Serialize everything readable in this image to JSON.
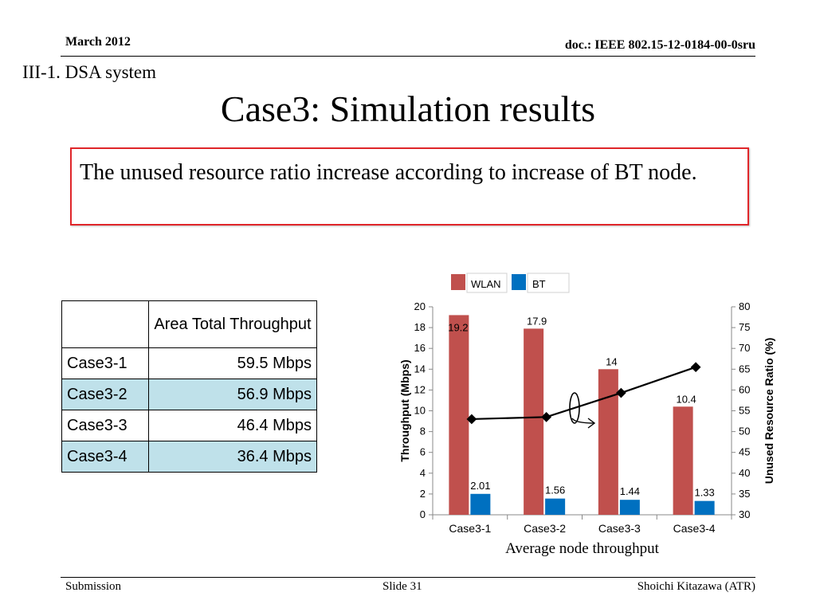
{
  "header": {
    "date": "March 2012",
    "doc": "doc.: IEEE 802.15-12-0184-00-0sru"
  },
  "section": "III-1. DSA system",
  "title": "Case3: Simulation results",
  "callout": "The unused resource ratio increase according to increase of BT node.",
  "table": {
    "header": [
      "",
      "Area Total Throughput"
    ],
    "rows": [
      {
        "case": "Case3-1",
        "value": "59.5 Mbps"
      },
      {
        "case": "Case3-2",
        "value": "56.9 Mbps"
      },
      {
        "case": "Case3-3",
        "value": "46.4 Mbps"
      },
      {
        "case": "Case3-4",
        "value": "36.4 Mbps"
      }
    ]
  },
  "colors": {
    "wlan": "#c0504d",
    "bt": "#0070c0",
    "accent": "#e0262a",
    "highlight": "#bfe1ea"
  },
  "chart_data": {
    "type": "bar",
    "categories": [
      "Case3-1",
      "Case3-2",
      "Case3-3",
      "Case3-4"
    ],
    "series": [
      {
        "name": "WLAN",
        "values": [
          19.2,
          17.9,
          14,
          10.4
        ],
        "labels": [
          "19.2",
          "17.9",
          "14",
          "10.4"
        ]
      },
      {
        "name": "BT",
        "values": [
          2.01,
          1.56,
          1.44,
          1.33
        ],
        "labels": [
          "2.01",
          "1.56",
          "1.44",
          "1.33"
        ]
      }
    ],
    "line_series": {
      "values": [
        53,
        53.5,
        59.3,
        65.5
      ],
      "axis": "right"
    },
    "ylabel": "Throughput  (Mbps)",
    "y2label": "Unused Resource Ratio (%)",
    "xlabel": "Average node throughput",
    "ylim": [
      0,
      20
    ],
    "y2lim": [
      30,
      80
    ],
    "yticks": [
      0,
      2,
      4,
      6,
      8,
      10,
      12,
      14,
      16,
      18,
      20
    ],
    "y2ticks": [
      30,
      35,
      40,
      45,
      50,
      55,
      60,
      65,
      70,
      75,
      80
    ],
    "legend_position": "top"
  },
  "footer": {
    "left": "Submission",
    "center": "Slide 31",
    "right": "Shoichi Kitazawa (ATR)"
  }
}
